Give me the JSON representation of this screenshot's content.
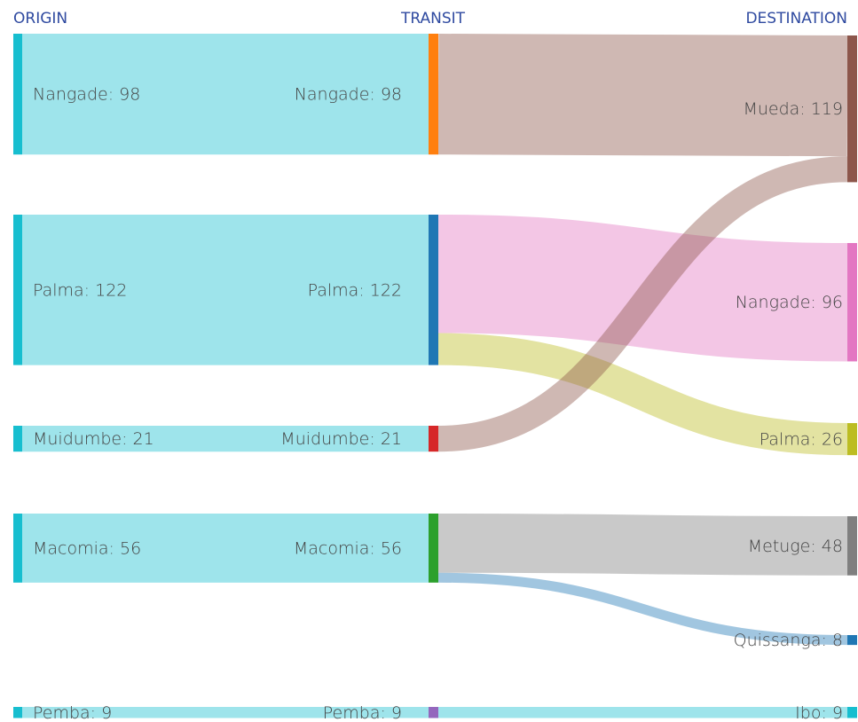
{
  "chart_data": {
    "type": "sankey",
    "headers": [
      "ORIGIN",
      "TRANSIT",
      "DESTINATION"
    ],
    "columns": [
      [
        {
          "label": "Nangade: 98",
          "value": 98,
          "color": "#17becf"
        },
        {
          "label": "Palma: 122",
          "value": 122,
          "color": "#17becf"
        },
        {
          "label": "Muidumbe: 21",
          "value": 21,
          "color": "#17becf"
        },
        {
          "label": "Macomia: 56",
          "value": 56,
          "color": "#17becf"
        },
        {
          "label": "Pemba: 9",
          "value": 9,
          "color": "#17becf"
        }
      ],
      [
        {
          "label": "Nangade: 98",
          "value": 98,
          "color": "#ff7f0e"
        },
        {
          "label": "Palma: 122",
          "value": 122,
          "color": "#1f77b4"
        },
        {
          "label": "Muidumbe: 21",
          "value": 21,
          "color": "#d62728"
        },
        {
          "label": "Macomia: 56",
          "value": 56,
          "color": "#2ca02c"
        },
        {
          "label": "Pemba: 9",
          "value": 9,
          "color": "#9467bd"
        }
      ],
      [
        {
          "label": "Mueda: 119",
          "value": 119,
          "color": "#8c564b"
        },
        {
          "label": "Nangade: 96",
          "value": 96,
          "color": "#e377c2"
        },
        {
          "label": "Palma: 26",
          "value": 26,
          "color": "#bcbd22"
        },
        {
          "label": "Metuge: 48",
          "value": 48,
          "color": "#7f7f7f"
        },
        {
          "label": "Quissanga: 8",
          "value": 8,
          "color": "#1f77b4"
        },
        {
          "label": "Ibo: 9",
          "value": 9,
          "color": "#17becf"
        }
      ]
    ],
    "links": [
      {
        "source": [
          0,
          0
        ],
        "target": [
          1,
          0
        ],
        "value": 98
      },
      {
        "source": [
          0,
          1
        ],
        "target": [
          1,
          1
        ],
        "value": 122
      },
      {
        "source": [
          0,
          2
        ],
        "target": [
          1,
          2
        ],
        "value": 21
      },
      {
        "source": [
          0,
          3
        ],
        "target": [
          1,
          3
        ],
        "value": 56
      },
      {
        "source": [
          0,
          4
        ],
        "target": [
          1,
          4
        ],
        "value": 9
      },
      {
        "source": [
          1,
          0
        ],
        "target": [
          2,
          0
        ],
        "value": 98
      },
      {
        "source": [
          1,
          1
        ],
        "target": [
          2,
          1
        ],
        "value": 96
      },
      {
        "source": [
          1,
          1
        ],
        "target": [
          2,
          2
        ],
        "value": 26
      },
      {
        "source": [
          1,
          2
        ],
        "target": [
          2,
          0
        ],
        "value": 21
      },
      {
        "source": [
          1,
          3
        ],
        "target": [
          2,
          3
        ],
        "value": 48
      },
      {
        "source": [
          1,
          3
        ],
        "target": [
          2,
          4
        ],
        "value": 8
      },
      {
        "source": [
          1,
          4
        ],
        "target": [
          2,
          5
        ],
        "value": 9
      }
    ]
  }
}
